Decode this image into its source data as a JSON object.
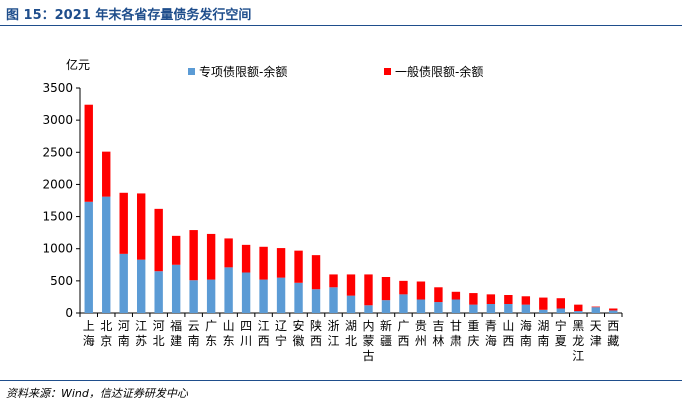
{
  "figure": {
    "title": "图 15：2021 年末各省存量债务发行空间",
    "source": "资料来源：Wind，信达证券研发中心"
  },
  "colors": {
    "special": "#5b9bd5",
    "general": "#ff0000",
    "rule": "#1f4e8c"
  },
  "chart_data": {
    "type": "bar",
    "stacked": true,
    "ylabel": "亿元",
    "ylim": [
      0,
      3500
    ],
    "yticks": [
      0,
      500,
      1000,
      1500,
      2000,
      2500,
      3000,
      3500
    ],
    "grid": false,
    "legend_position": "top",
    "categories": [
      "上海",
      "北京",
      "河南",
      "江苏",
      "河北",
      "福建",
      "云南",
      "广东",
      "山东",
      "四川",
      "江西",
      "辽宁",
      "安徽",
      "陕西",
      "浙江",
      "湖北",
      "内蒙古",
      "新疆",
      "广西",
      "贵州",
      "吉林",
      "甘肃",
      "重庆",
      "青海",
      "山西",
      "海南",
      "湖南",
      "宁夏",
      "黑龙江",
      "天津",
      "西藏"
    ],
    "series": [
      {
        "name": "专项债限额-余额",
        "values": [
          1730,
          1810,
          920,
          830,
          650,
          750,
          510,
          520,
          710,
          630,
          520,
          550,
          470,
          370,
          400,
          270,
          120,
          200,
          290,
          210,
          170,
          210,
          130,
          140,
          140,
          130,
          50,
          70,
          30,
          90,
          40
        ]
      },
      {
        "name": "一般债限额-余额",
        "values": [
          1510,
          700,
          950,
          1030,
          970,
          450,
          780,
          710,
          450,
          430,
          510,
          460,
          500,
          530,
          200,
          330,
          480,
          360,
          210,
          280,
          230,
          120,
          180,
          150,
          140,
          130,
          190,
          160,
          100,
          10,
          30
        ]
      }
    ]
  }
}
